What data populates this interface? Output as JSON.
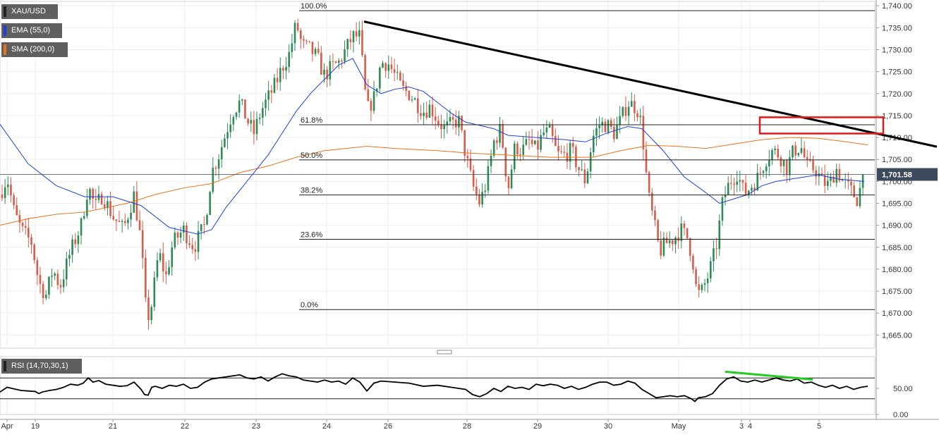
{
  "chart_data": {
    "type": "candlestick",
    "symbol": "XAU/USD",
    "indicators": {
      "ema": {
        "label": "EMA (55,0)",
        "color": "#1f3fd6"
      },
      "sma": {
        "label": "SMA (200,0)",
        "color": "#e8731c"
      },
      "rsi": {
        "label": "RSI (14,70,30,1)",
        "color": "#000000",
        "upper": 70,
        "lower": 30,
        "ticks": [
          {
            "value": 50,
            "label": "50.00"
          },
          {
            "value": 0,
            "label": "0.00"
          }
        ]
      }
    },
    "colors": {
      "up": "#2e8b57",
      "down": "#d95c4a",
      "trendline": "#000000",
      "box": "#e01818",
      "divergence": "#22cc22",
      "label_bg": "#3b4a5c"
    },
    "ylim": [
      1662,
      1741
    ],
    "y_ticks": [
      {
        "value": 1740,
        "label": "1,740.00"
      },
      {
        "value": 1735,
        "label": "1,735.00"
      },
      {
        "value": 1730,
        "label": "1,730.00"
      },
      {
        "value": 1725,
        "label": "1,725.00"
      },
      {
        "value": 1720,
        "label": "1,720.00"
      },
      {
        "value": 1715,
        "label": "1,715.00"
      },
      {
        "value": 1710,
        "label": "1,710.00"
      },
      {
        "value": 1705,
        "label": "1,705.00"
      },
      {
        "value": 1700,
        "label": "1,700.00"
      },
      {
        "value": 1695,
        "label": "1,695.00"
      },
      {
        "value": 1690,
        "label": "1,690.00"
      },
      {
        "value": 1685,
        "label": "1,685.00"
      },
      {
        "value": 1680,
        "label": "1,680.00"
      },
      {
        "value": 1675,
        "label": "1,675.00"
      },
      {
        "value": 1670,
        "label": "1,670.00"
      },
      {
        "value": 1665,
        "label": "1,665.00"
      }
    ],
    "x_range": [
      0,
      1240
    ],
    "x_ticks": [
      {
        "x": 10,
        "label": "Apr"
      },
      {
        "x": 50,
        "label": "19"
      },
      {
        "x": 160,
        "label": "21"
      },
      {
        "x": 262,
        "label": "22"
      },
      {
        "x": 363,
        "label": "23"
      },
      {
        "x": 463,
        "label": "24"
      },
      {
        "x": 550,
        "label": "26"
      },
      {
        "x": 662,
        "label": "28"
      },
      {
        "x": 762,
        "label": "29"
      },
      {
        "x": 862,
        "label": "30"
      },
      {
        "x": 962,
        "label": "May"
      },
      {
        "x": 1051,
        "label": "3"
      },
      {
        "x": 1063,
        "label": "4"
      },
      {
        "x": 1161,
        "label": "5"
      }
    ],
    "current_price": {
      "value": 1701.58,
      "label": "1,701.58"
    },
    "fibonacci": {
      "x_start": 424,
      "levels": [
        {
          "label": "100.0%",
          "value": 1738.9
        },
        {
          "label": "61.8%",
          "value": 1712.9
        },
        {
          "label": "50.0%",
          "value": 1704.9
        },
        {
          "label": "38.2%",
          "value": 1696.9
        },
        {
          "label": "23.6%",
          "value": 1686.8
        },
        {
          "label": "0.0%",
          "value": 1670.8
        }
      ]
    },
    "trendline": {
      "x1": 516,
      "y1": 1736.4,
      "x2": 1328,
      "y2": 1707.9
    },
    "resistance_box": {
      "x1": 1077,
      "x2": 1252,
      "y_high": 1714.6,
      "y_low": 1710.9
    },
    "ema_line": [
      [
        0,
        1713
      ],
      [
        40,
        1704
      ],
      [
        80,
        1699
      ],
      [
        120,
        1696.5
      ],
      [
        160,
        1696.5
      ],
      [
        200,
        1694.5
      ],
      [
        240,
        1689.5
      ],
      [
        280,
        1688
      ],
      [
        300,
        1689
      ],
      [
        320,
        1694
      ],
      [
        360,
        1702
      ],
      [
        380,
        1706
      ],
      [
        400,
        1711
      ],
      [
        420,
        1716
      ],
      [
        440,
        1720
      ],
      [
        480,
        1726.5
      ],
      [
        500,
        1728
      ],
      [
        520,
        1722
      ],
      [
        540,
        1720
      ],
      [
        560,
        1721
      ],
      [
        580,
        1721.5
      ],
      [
        600,
        1720.5
      ],
      [
        620,
        1718
      ],
      [
        640,
        1715.5
      ],
      [
        660,
        1713.5
      ],
      [
        700,
        1712
      ],
      [
        720,
        1710.5
      ],
      [
        760,
        1710
      ],
      [
        800,
        1709.5
      ],
      [
        830,
        1709
      ],
      [
        860,
        1711
      ],
      [
        890,
        1712.5
      ],
      [
        910,
        1712
      ],
      [
        940,
        1707
      ],
      [
        970,
        1701
      ],
      [
        1000,
        1697.5
      ],
      [
        1020,
        1695
      ],
      [
        1040,
        1696
      ],
      [
        1060,
        1697
      ],
      [
        1080,
        1699
      ],
      [
        1100,
        1700
      ],
      [
        1140,
        1701
      ],
      [
        1160,
        1701.5
      ],
      [
        1190,
        1700.5
      ],
      [
        1225,
        1700
      ]
    ],
    "sma_line": [
      [
        0,
        1690
      ],
      [
        40,
        1691.5
      ],
      [
        80,
        1692.5
      ],
      [
        120,
        1693
      ],
      [
        180,
        1695
      ],
      [
        220,
        1697
      ],
      [
        260,
        1698.5
      ],
      [
        300,
        1699.5
      ],
      [
        340,
        1702
      ],
      [
        380,
        1703.5
      ],
      [
        420,
        1705.5
      ],
      [
        460,
        1707
      ],
      [
        520,
        1708
      ],
      [
        560,
        1707.5
      ],
      [
        620,
        1707
      ],
      [
        660,
        1706.5
      ],
      [
        720,
        1706
      ],
      [
        780,
        1705.5
      ],
      [
        840,
        1705.5
      ],
      [
        880,
        1707
      ],
      [
        920,
        1708.2
      ],
      [
        960,
        1708
      ],
      [
        1000,
        1707.5
      ],
      [
        1040,
        1708.5
      ],
      [
        1080,
        1709.5
      ],
      [
        1120,
        1710
      ],
      [
        1160,
        1709.8
      ],
      [
        1200,
        1709
      ],
      [
        1230,
        1708.3
      ]
    ],
    "rsi_line": [
      [
        0,
        43
      ],
      [
        10,
        52
      ],
      [
        20,
        49
      ],
      [
        30,
        46
      ],
      [
        40,
        45
      ],
      [
        50,
        44
      ],
      [
        55,
        40
      ],
      [
        60,
        43
      ],
      [
        70,
        46
      ],
      [
        80,
        48
      ],
      [
        90,
        52
      ],
      [
        100,
        58
      ],
      [
        110,
        56
      ],
      [
        118,
        60
      ],
      [
        125,
        70
      ],
      [
        132,
        62
      ],
      [
        140,
        65
      ],
      [
        150,
        58
      ],
      [
        160,
        56
      ],
      [
        170,
        54
      ],
      [
        180,
        55
      ],
      [
        190,
        62
      ],
      [
        200,
        48
      ],
      [
        205,
        38
      ],
      [
        210,
        37
      ],
      [
        215,
        52
      ],
      [
        220,
        54
      ],
      [
        230,
        50
      ],
      [
        240,
        56
      ],
      [
        250,
        54
      ],
      [
        260,
        58
      ],
      [
        270,
        50
      ],
      [
        280,
        52
      ],
      [
        290,
        62
      ],
      [
        300,
        68
      ],
      [
        310,
        70
      ],
      [
        320,
        72
      ],
      [
        330,
        74
      ],
      [
        340,
        76
      ],
      [
        350,
        70
      ],
      [
        360,
        68
      ],
      [
        370,
        72
      ],
      [
        380,
        64
      ],
      [
        390,
        72
      ],
      [
        400,
        78
      ],
      [
        410,
        74
      ],
      [
        420,
        72
      ],
      [
        430,
        66
      ],
      [
        440,
        64
      ],
      [
        450,
        62
      ],
      [
        460,
        66
      ],
      [
        470,
        62
      ],
      [
        480,
        64
      ],
      [
        490,
        58
      ],
      [
        500,
        70
      ],
      [
        510,
        62
      ],
      [
        520,
        45
      ],
      [
        530,
        60
      ],
      [
        540,
        64
      ],
      [
        560,
        62
      ],
      [
        580,
        60
      ],
      [
        600,
        54
      ],
      [
        620,
        56
      ],
      [
        640,
        52
      ],
      [
        660,
        48
      ],
      [
        670,
        38
      ],
      [
        680,
        34
      ],
      [
        690,
        40
      ],
      [
        700,
        50
      ],
      [
        710,
        44
      ],
      [
        720,
        54
      ],
      [
        730,
        50
      ],
      [
        740,
        52
      ],
      [
        750,
        48
      ],
      [
        760,
        58
      ],
      [
        770,
        55
      ],
      [
        780,
        58
      ],
      [
        790,
        56
      ],
      [
        800,
        50
      ],
      [
        810,
        54
      ],
      [
        820,
        48
      ],
      [
        830,
        52
      ],
      [
        840,
        58
      ],
      [
        850,
        62
      ],
      [
        860,
        62
      ],
      [
        870,
        56
      ],
      [
        880,
        58
      ],
      [
        890,
        64
      ],
      [
        900,
        60
      ],
      [
        910,
        48
      ],
      [
        920,
        40
      ],
      [
        930,
        32
      ],
      [
        940,
        34
      ],
      [
        950,
        36
      ],
      [
        960,
        34
      ],
      [
        970,
        36
      ],
      [
        980,
        30
      ],
      [
        985,
        25
      ],
      [
        990,
        32
      ],
      [
        1000,
        34
      ],
      [
        1010,
        40
      ],
      [
        1020,
        56
      ],
      [
        1030,
        68
      ],
      [
        1040,
        72
      ],
      [
        1050,
        64
      ],
      [
        1060,
        62
      ],
      [
        1070,
        66
      ],
      [
        1080,
        62
      ],
      [
        1090,
        66
      ],
      [
        1100,
        70
      ],
      [
        1110,
        66
      ],
      [
        1120,
        64
      ],
      [
        1130,
        68
      ],
      [
        1140,
        60
      ],
      [
        1150,
        62
      ],
      [
        1160,
        56
      ],
      [
        1170,
        52
      ],
      [
        1180,
        56
      ],
      [
        1190,
        50
      ],
      [
        1200,
        54
      ],
      [
        1210,
        48
      ],
      [
        1220,
        52
      ],
      [
        1230,
        54
      ]
    ],
    "divergence": {
      "x1": 1028,
      "y1": 82,
      "x2": 1152,
      "y2": 67
    }
  }
}
